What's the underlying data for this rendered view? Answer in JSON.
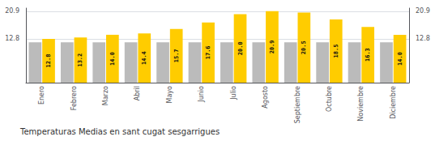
{
  "chart_data": {
    "type": "bar",
    "title": "Temperaturas Medias en sant cugat sesgarrigues",
    "categories": [
      "Enero",
      "Febrero",
      "Marzo",
      "Abril",
      "Mayo",
      "Junio",
      "Julio",
      "Agosto",
      "Septiembre",
      "Octubre",
      "Noviembre",
      "Diciembre"
    ],
    "series": [
      {
        "color": "#BBBBBB",
        "values": [
          11.8,
          11.8,
          11.8,
          11.8,
          11.8,
          11.8,
          11.8,
          11.8,
          11.8,
          11.8,
          11.8,
          11.8
        ]
      },
      {
        "color": "#FFCC00",
        "values": [
          12.8,
          13.2,
          14.0,
          14.4,
          15.7,
          17.6,
          20.0,
          20.9,
          20.5,
          18.5,
          16.3,
          14.0
        ],
        "value_labels": [
          "12.8",
          "13.2",
          "14.0",
          "14.4",
          "15.7",
          "17.6",
          "20.0",
          "20.9",
          "20.5",
          "18.5",
          "16.3",
          "14.0"
        ],
        "data_labels": true
      }
    ],
    "ylim": [
      0,
      21.8
    ],
    "yticks": [
      12.8,
      20.9
    ],
    "y2lim": [
      0,
      21.8
    ],
    "y2ticks": [
      12.8,
      20.9
    ],
    "grid": true
  }
}
